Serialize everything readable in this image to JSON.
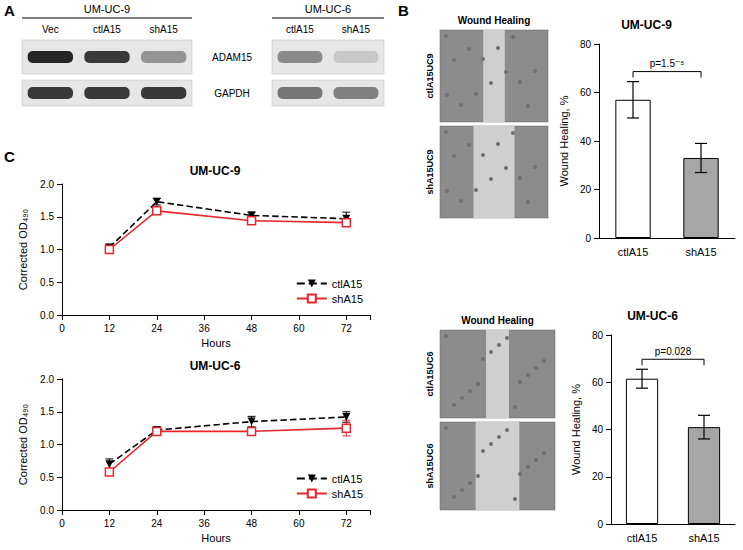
{
  "panels": {
    "labels": [
      "A",
      "B",
      "C"
    ]
  },
  "blot": {
    "rows": [
      "ADAM15",
      "GAPDH"
    ],
    "groups": [
      {
        "title": "UM-UC-9",
        "lanes": [
          "Vec",
          "ctlA15",
          "shA15"
        ],
        "bands": [
          [
            0.95,
            0.85,
            0.4
          ],
          [
            0.85,
            0.85,
            0.85
          ]
        ]
      },
      {
        "title": "UM-UC-6",
        "lanes": [
          "ctlA15",
          "shA15"
        ],
        "bands": [
          [
            0.45,
            0.15
          ],
          [
            0.55,
            0.5
          ]
        ]
      }
    ]
  },
  "wound_images": [
    {
      "title": "Wound Healing",
      "labels": [
        "ctlA15UC9",
        "shA15UC9"
      ]
    },
    {
      "title": "Wound Healing",
      "labels": [
        "ctlA15UC6",
        "shA15UC6"
      ]
    }
  ],
  "chart_data": [
    {
      "type": "bar",
      "title": "UM-UC-9",
      "ylabel": "Wound Healing, %",
      "categories": [
        "ctlA15",
        "shA15"
      ],
      "values": [
        57,
        33
      ],
      "errors": [
        7.5,
        6
      ],
      "colors": [
        "#ffffff",
        "#a6a6a6"
      ],
      "ylim": [
        0,
        80
      ],
      "yticks": [
        0,
        20,
        40,
        60,
        80
      ],
      "annotation": "p=1.5⁻⁵"
    },
    {
      "type": "bar",
      "title": "UM-UC-6",
      "ylabel": "Wound Healing, %",
      "categories": [
        "ctlA15",
        "shA15"
      ],
      "values": [
        61.5,
        41
      ],
      "errors": [
        4,
        5
      ],
      "colors": [
        "#ffffff",
        "#a6a6a6"
      ],
      "ylim": [
        0,
        80
      ],
      "yticks": [
        0,
        20,
        40,
        60,
        80
      ],
      "annotation": "p=0.028"
    },
    {
      "type": "line",
      "title": "UM-UC-9",
      "xlabel": "Hours",
      "ylabel": "Corrected OD₄₉₀",
      "x": [
        12,
        24,
        48,
        72
      ],
      "series": [
        {
          "name": "ctlA15",
          "color": "#000000",
          "marker": "triangle-down",
          "line_style": "dashed",
          "values": [
            1.03,
            1.73,
            1.52,
            1.47
          ],
          "errors": [
            0.05,
            0.05,
            0.05,
            0.1
          ]
        },
        {
          "name": "shA15",
          "color": "#e8262b",
          "marker": "square",
          "line_style": "solid",
          "values": [
            1.0,
            1.59,
            1.44,
            1.41
          ],
          "errors": [
            0.06,
            0.05,
            0.04,
            0.06
          ]
        }
      ],
      "xlim": [
        0,
        78
      ],
      "xticks": [
        0,
        12,
        24,
        36,
        48,
        60,
        72
      ],
      "ylim": [
        0,
        2
      ],
      "yticks": [
        {
          "value": 0,
          "label": "0.0"
        },
        {
          "value": 0.5,
          "label": "0.5"
        },
        {
          "value": 1,
          "label": "1.0"
        },
        {
          "value": 1.5,
          "label": "1.5"
        },
        {
          "value": 2,
          "label": "2.0"
        }
      ],
      "legend": "lower right"
    },
    {
      "type": "line",
      "title": "UM-UC-6",
      "xlabel": "Hours",
      "ylabel": "Corrected OD₄₉₀",
      "x": [
        12,
        24,
        48,
        72
      ],
      "series": [
        {
          "name": "ctlA15",
          "color": "#000000",
          "marker": "triangle-down",
          "line_style": "dashed",
          "values": [
            0.7,
            1.22,
            1.35,
            1.42
          ],
          "errors": [
            0.08,
            0.05,
            0.08,
            0.08
          ]
        },
        {
          "name": "shA15",
          "color": "#e8262b",
          "marker": "square",
          "line_style": "solid",
          "values": [
            0.58,
            1.2,
            1.2,
            1.25
          ],
          "errors": [
            0.05,
            0.05,
            0.05,
            0.12
          ]
        }
      ],
      "xlim": [
        0,
        78
      ],
      "xticks": [
        0,
        12,
        24,
        36,
        48,
        60,
        72
      ],
      "ylim": [
        0,
        2
      ],
      "yticks": [
        {
          "value": 0,
          "label": "0.0"
        },
        {
          "value": 0.5,
          "label": "0.5"
        },
        {
          "value": 1,
          "label": "1.0"
        },
        {
          "value": 1.5,
          "label": "1.5"
        },
        {
          "value": 2,
          "label": "2.0"
        }
      ],
      "legend": "lower right"
    }
  ]
}
